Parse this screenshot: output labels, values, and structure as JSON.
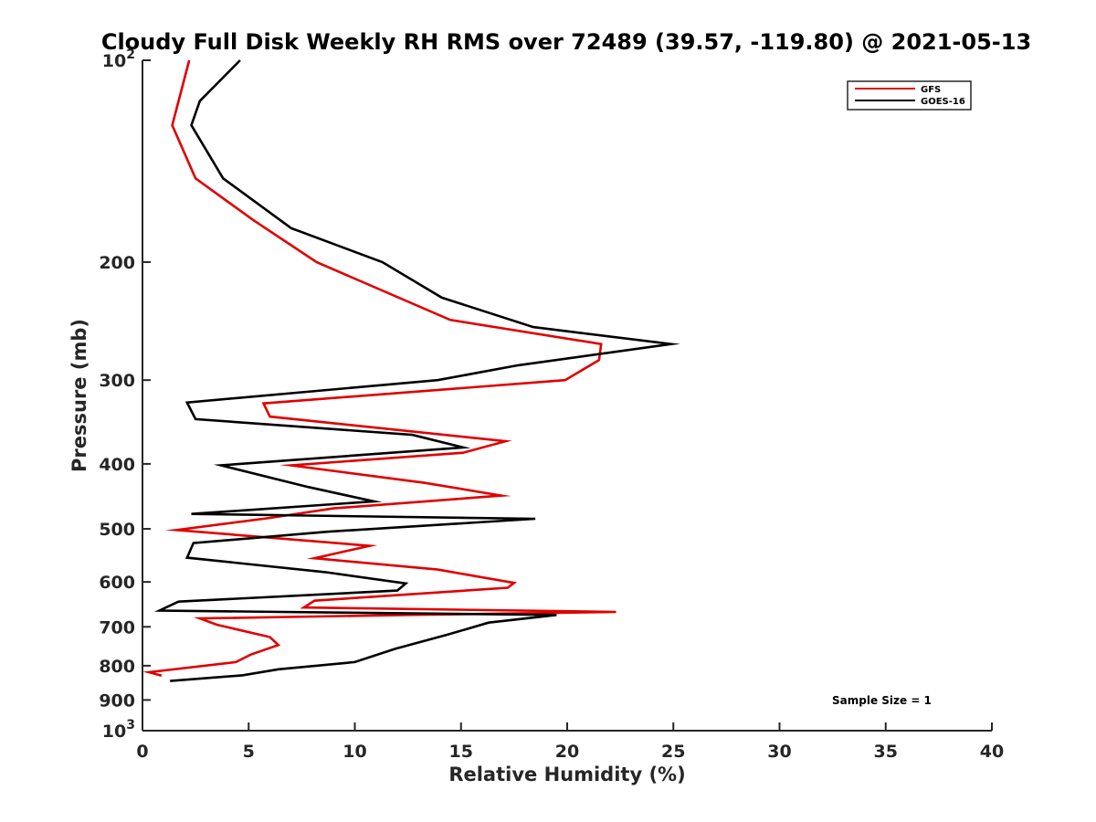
{
  "chart_data": {
    "type": "line",
    "title": "Cloudy Full Disk Weekly RH RMS over 72489 (39.57, -119.80) @ 2021-05-13",
    "xlabel": "Relative Humidity (%)",
    "ylabel": "Pressure (mb)",
    "xlim": [
      0,
      40
    ],
    "ylim": [
      100,
      1000
    ],
    "y_scale": "log",
    "y_reversed": true,
    "x_ticks": [
      "0",
      "5",
      "10",
      "15",
      "20",
      "25",
      "30",
      "35",
      "40"
    ],
    "y_ticks": [
      {
        "value": 100,
        "base": "10",
        "exp": "2"
      },
      {
        "value": 200,
        "label": "200"
      },
      {
        "value": 300,
        "label": "300"
      },
      {
        "value": 400,
        "label": "400"
      },
      {
        "value": 500,
        "label": "500"
      },
      {
        "value": 600,
        "label": "600"
      },
      {
        "value": 700,
        "label": "700"
      },
      {
        "value": 800,
        "label": "800"
      },
      {
        "value": 900,
        "label": "900"
      },
      {
        "value": 1000,
        "base": "10",
        "exp": "3"
      }
    ],
    "legend_position": "top-right",
    "annotation": "Sample Size = 1",
    "series": [
      {
        "name": "GFS",
        "color": "#e00000",
        "points": [
          [
            2.2,
            100
          ],
          [
            1.4,
            125
          ],
          [
            2.5,
            150
          ],
          [
            5.2,
            173
          ],
          [
            8.2,
            200
          ],
          [
            14.5,
            244
          ],
          [
            21.6,
            265
          ],
          [
            21.5,
            280
          ],
          [
            19.9,
            300
          ],
          [
            5.7,
            325
          ],
          [
            6.0,
            340
          ],
          [
            17.1,
            370
          ],
          [
            15.1,
            385
          ],
          [
            7.0,
            402
          ],
          [
            13.3,
            427
          ],
          [
            16.9,
            446
          ],
          [
            9.0,
            466
          ],
          [
            5.9,
            482
          ],
          [
            1.6,
            502
          ],
          [
            10.7,
            530
          ],
          [
            8.1,
            553
          ],
          [
            13.9,
            575
          ],
          [
            17.5,
            602
          ],
          [
            17.2,
            612
          ],
          [
            8.1,
            640
          ],
          [
            7.6,
            655
          ],
          [
            22.3,
            665
          ],
          [
            12.5,
            672
          ],
          [
            2.7,
            680
          ],
          [
            3.5,
            695
          ],
          [
            6.0,
            725
          ],
          [
            6.4,
            745
          ],
          [
            5.1,
            770
          ],
          [
            4.4,
            790
          ],
          [
            0.3,
            818
          ],
          [
            0.9,
            828
          ]
        ]
      },
      {
        "name": "GOES-16",
        "color": "#000000",
        "points": [
          [
            4.6,
            100
          ],
          [
            2.7,
            115
          ],
          [
            2.3,
            125
          ],
          [
            3.8,
            150
          ],
          [
            7.0,
            178
          ],
          [
            11.3,
            200
          ],
          [
            14.1,
            226
          ],
          [
            18.4,
            250
          ],
          [
            24.9,
            265
          ],
          [
            17.7,
            285
          ],
          [
            13.9,
            300
          ],
          [
            2.1,
            324
          ],
          [
            2.5,
            343
          ],
          [
            12.7,
            362
          ],
          [
            15.1,
            378
          ],
          [
            3.7,
            402
          ],
          [
            7.8,
            433
          ],
          [
            10.9,
            455
          ],
          [
            2.3,
            475
          ],
          [
            18.5,
            483
          ],
          [
            8.7,
            505
          ],
          [
            2.4,
            525
          ],
          [
            2.1,
            552
          ],
          [
            8.6,
            580
          ],
          [
            12.4,
            603
          ],
          [
            12.0,
            618
          ],
          [
            1.7,
            642
          ],
          [
            0.8,
            662
          ],
          [
            19.5,
            672
          ],
          [
            16.3,
            690
          ],
          [
            14.3,
            720
          ],
          [
            11.9,
            755
          ],
          [
            10.0,
            790
          ],
          [
            6.4,
            810
          ],
          [
            4.7,
            827
          ],
          [
            1.3,
            843
          ]
        ]
      }
    ]
  }
}
